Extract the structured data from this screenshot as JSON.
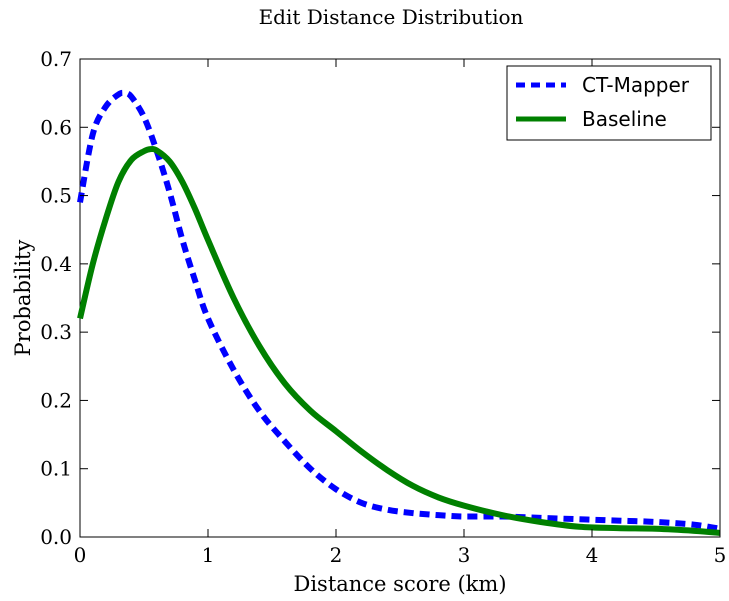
{
  "chart_data": {
    "type": "line",
    "title": "Edit Distance Distribution",
    "xlabel": "Distance score (km)",
    "ylabel": "Probability",
    "xlim": [
      0,
      5
    ],
    "ylim": [
      0,
      0.7
    ],
    "xticks": [
      0,
      1,
      2,
      3,
      4,
      5
    ],
    "yticks": [
      0.0,
      0.1,
      0.2,
      0.3,
      0.4,
      0.5,
      0.6,
      0.7
    ],
    "xtick_labels": [
      "0",
      "1",
      "2",
      "3",
      "4",
      "5"
    ],
    "ytick_labels": [
      "0.0",
      "0.1",
      "0.2",
      "0.3",
      "0.4",
      "0.5",
      "0.6",
      "0.7"
    ],
    "grid": false,
    "legend_position": "top-right",
    "series": [
      {
        "name": "CT-Mapper",
        "color": "#0000ff",
        "style": "dashed",
        "x": [
          0,
          0.1,
          0.2,
          0.3,
          0.35,
          0.4,
          0.5,
          0.6,
          0.7,
          0.8,
          0.9,
          1.0,
          1.2,
          1.4,
          1.6,
          1.8,
          2.0,
          2.2,
          2.4,
          2.6,
          2.8,
          3.0,
          3.3,
          3.6,
          3.9,
          4.2,
          4.5,
          4.8,
          5.0
        ],
        "y": [
          0.49,
          0.59,
          0.63,
          0.648,
          0.65,
          0.645,
          0.615,
          0.565,
          0.505,
          0.435,
          0.375,
          0.32,
          0.245,
          0.185,
          0.14,
          0.1,
          0.07,
          0.05,
          0.04,
          0.035,
          0.032,
          0.03,
          0.03,
          0.028,
          0.026,
          0.024,
          0.022,
          0.018,
          0.012
        ]
      },
      {
        "name": "Baseline",
        "color": "#008000",
        "style": "solid",
        "x": [
          0,
          0.1,
          0.2,
          0.3,
          0.4,
          0.5,
          0.55,
          0.6,
          0.7,
          0.8,
          0.9,
          1.0,
          1.2,
          1.4,
          1.6,
          1.8,
          2.0,
          2.2,
          2.4,
          2.6,
          2.8,
          3.0,
          3.3,
          3.6,
          3.9,
          4.2,
          4.5,
          4.8,
          5.0
        ],
        "y": [
          0.32,
          0.4,
          0.465,
          0.52,
          0.552,
          0.565,
          0.568,
          0.566,
          0.55,
          0.52,
          0.48,
          0.435,
          0.35,
          0.28,
          0.225,
          0.185,
          0.155,
          0.125,
          0.098,
          0.075,
          0.058,
          0.046,
          0.032,
          0.022,
          0.015,
          0.013,
          0.012,
          0.009,
          0.006
        ]
      }
    ]
  }
}
